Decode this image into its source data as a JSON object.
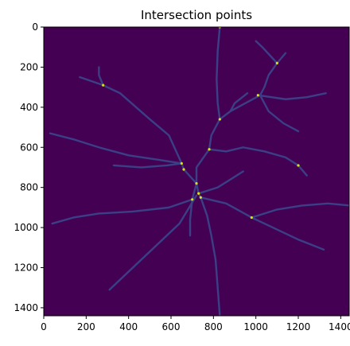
{
  "chart_data": {
    "type": "image",
    "title": "Intersection points",
    "xlim": [
      0,
      1440
    ],
    "ylim": [
      1440,
      0
    ],
    "x_ticks": [
      0,
      200,
      400,
      600,
      800,
      1000,
      1200,
      1400
    ],
    "y_ticks": [
      0,
      200,
      400,
      600,
      800,
      1000,
      1200,
      1400
    ],
    "colormap": "viridis",
    "background_color": "#440154",
    "line_color": "#3b3f86",
    "point_color": "#d8e219",
    "line_width": 9,
    "lines": [
      [
        [
          830,
          0
        ],
        [
          820,
          120
        ],
        [
          815,
          260
        ],
        [
          820,
          380
        ],
        [
          830,
          460
        ]
      ],
      [
        [
          1140,
          130
        ],
        [
          1100,
          180
        ],
        [
          1060,
          240
        ],
        [
          1040,
          300
        ],
        [
          1020,
          340
        ],
        [
          880,
          420
        ],
        [
          830,
          460
        ],
        [
          790,
          540
        ],
        [
          780,
          610
        ],
        [
          720,
          700
        ],
        [
          720,
          780
        ]
      ],
      [
        [
          1010,
          340
        ],
        [
          1140,
          360
        ],
        [
          1240,
          350
        ],
        [
          1330,
          330
        ]
      ],
      [
        [
          1100,
          180
        ],
        [
          1030,
          100
        ],
        [
          1000,
          70
        ]
      ],
      [
        [
          170,
          250
        ],
        [
          280,
          290
        ],
        [
          360,
          330
        ],
        [
          500,
          460
        ],
        [
          590,
          540
        ],
        [
          650,
          680
        ],
        [
          660,
          710
        ],
        [
          720,
          780
        ],
        [
          730,
          830
        ],
        [
          740,
          850
        ],
        [
          860,
          880
        ],
        [
          980,
          950
        ]
      ],
      [
        [
          280,
          290
        ],
        [
          260,
          240
        ],
        [
          260,
          200
        ]
      ],
      [
        [
          860,
          620
        ],
        [
          940,
          600
        ],
        [
          1040,
          620
        ],
        [
          1140,
          650
        ],
        [
          1200,
          690
        ],
        [
          1240,
          740
        ]
      ],
      [
        [
          780,
          610
        ],
        [
          860,
          620
        ]
      ],
      [
        [
          30,
          530
        ],
        [
          140,
          560
        ],
        [
          260,
          600
        ],
        [
          400,
          640
        ],
        [
          530,
          660
        ],
        [
          650,
          680
        ]
      ],
      [
        [
          720,
          780
        ],
        [
          700,
          860
        ],
        [
          590,
          900
        ],
        [
          420,
          920
        ],
        [
          260,
          930
        ],
        [
          140,
          950
        ],
        [
          40,
          980
        ]
      ],
      [
        [
          980,
          950
        ],
        [
          1080,
          1000
        ],
        [
          1200,
          1060
        ],
        [
          1320,
          1110
        ]
      ],
      [
        [
          980,
          950
        ],
        [
          1100,
          910
        ],
        [
          1220,
          890
        ],
        [
          1340,
          880
        ],
        [
          1440,
          890
        ]
      ],
      [
        [
          740,
          850
        ],
        [
          770,
          940
        ],
        [
          790,
          1040
        ],
        [
          810,
          1160
        ],
        [
          820,
          1300
        ],
        [
          830,
          1440
        ]
      ],
      [
        [
          720,
          840
        ],
        [
          640,
          980
        ],
        [
          520,
          1100
        ],
        [
          400,
          1220
        ],
        [
          310,
          1310
        ]
      ],
      [
        [
          650,
          680
        ],
        [
          580,
          690
        ],
        [
          460,
          700
        ],
        [
          330,
          690
        ]
      ],
      [
        [
          700,
          860
        ],
        [
          690,
          960
        ],
        [
          690,
          1040
        ]
      ],
      [
        [
          880,
          420
        ],
        [
          900,
          380
        ],
        [
          960,
          330
        ]
      ],
      [
        [
          1020,
          340
        ],
        [
          1060,
          420
        ],
        [
          1130,
          480
        ],
        [
          1200,
          520
        ]
      ],
      [
        [
          730,
          830
        ],
        [
          820,
          800
        ],
        [
          880,
          760
        ],
        [
          940,
          720
        ]
      ]
    ],
    "points": [
      [
        830,
        0
      ],
      [
        1100,
        180
      ],
      [
        280,
        290
      ],
      [
        1010,
        340
      ],
      [
        830,
        460
      ],
      [
        780,
        610
      ],
      [
        650,
        680
      ],
      [
        1200,
        690
      ],
      [
        660,
        710
      ],
      [
        720,
        780
      ],
      [
        730,
        830
      ],
      [
        740,
        850
      ],
      [
        700,
        860
      ],
      [
        980,
        950
      ]
    ]
  }
}
